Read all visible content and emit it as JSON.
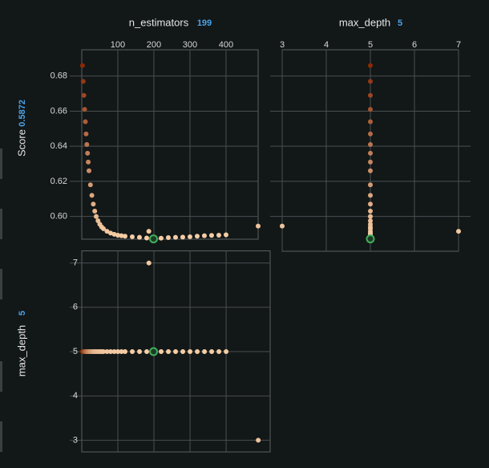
{
  "chart_data": {
    "type": "scatter-matrix",
    "trials": {
      "n_estimators": [
        2,
        4,
        6,
        8,
        10,
        12,
        14,
        16,
        18,
        20,
        24,
        28,
        32,
        36,
        40,
        45,
        50,
        55,
        60,
        70,
        80,
        90,
        100,
        110,
        120,
        140,
        160,
        180,
        199,
        220,
        240,
        260,
        280,
        300,
        320,
        340,
        360,
        380,
        400,
        186,
        489
      ],
      "max_depth": [
        5,
        5,
        5,
        5,
        5,
        5,
        5,
        5,
        5,
        5,
        5,
        5,
        5,
        5,
        5,
        5,
        5,
        5,
        5,
        5,
        5,
        5,
        5,
        5,
        5,
        5,
        5,
        5,
        5,
        5,
        5,
        5,
        5,
        5,
        5,
        5,
        5,
        5,
        5,
        7,
        3
      ],
      "score": [
        0.686,
        0.677,
        0.669,
        0.661,
        0.654,
        0.647,
        0.641,
        0.636,
        0.631,
        0.626,
        0.618,
        0.612,
        0.607,
        0.603,
        0.6,
        0.5975,
        0.5955,
        0.594,
        0.593,
        0.5915,
        0.5905,
        0.5898,
        0.5893,
        0.589,
        0.5887,
        0.5884,
        0.5881,
        0.5877,
        0.5872,
        0.5876,
        0.5879,
        0.5881,
        0.5882,
        0.5884,
        0.5887,
        0.589,
        0.5892,
        0.5893,
        0.5895,
        0.5915,
        0.5945
      ]
    },
    "columns": {
      "n_estimators": "n_estimators",
      "max_depth": "max_depth",
      "score": "Score"
    },
    "best_index": 28,
    "color_scale": [
      "#f6cfa6",
      "#8a2a05"
    ],
    "best_color": "#3fae5a",
    "panels": [
      {
        "x": "n_estimators",
        "y": "score",
        "xlim": [
          0,
          489
        ],
        "xticks": [
          100,
          200,
          300,
          400
        ],
        "ylim": [
          0.587,
          0.695
        ],
        "yticks": [
          {
            "value": 0.6,
            "label": "0.60"
          },
          0.62,
          0.64,
          0.66,
          0.68
        ]
      },
      {
        "x": "max_depth",
        "y": "score",
        "xlim": [
          3,
          7
        ],
        "xticks": [
          3,
          4,
          5,
          6,
          7
        ],
        "ylim": [
          0.587,
          0.695
        ],
        "yticks": [
          0.6,
          0.62,
          0.64,
          0.66,
          0.68
        ]
      },
      {
        "x": "n_estimators",
        "y": "max_depth",
        "xlim": [
          0,
          522
        ],
        "xticks": [
          100,
          200,
          300,
          400
        ],
        "ylim": [
          2.727,
          7.273
        ],
        "yticks": [
          3,
          4,
          5,
          6,
          7
        ]
      }
    ]
  }
}
